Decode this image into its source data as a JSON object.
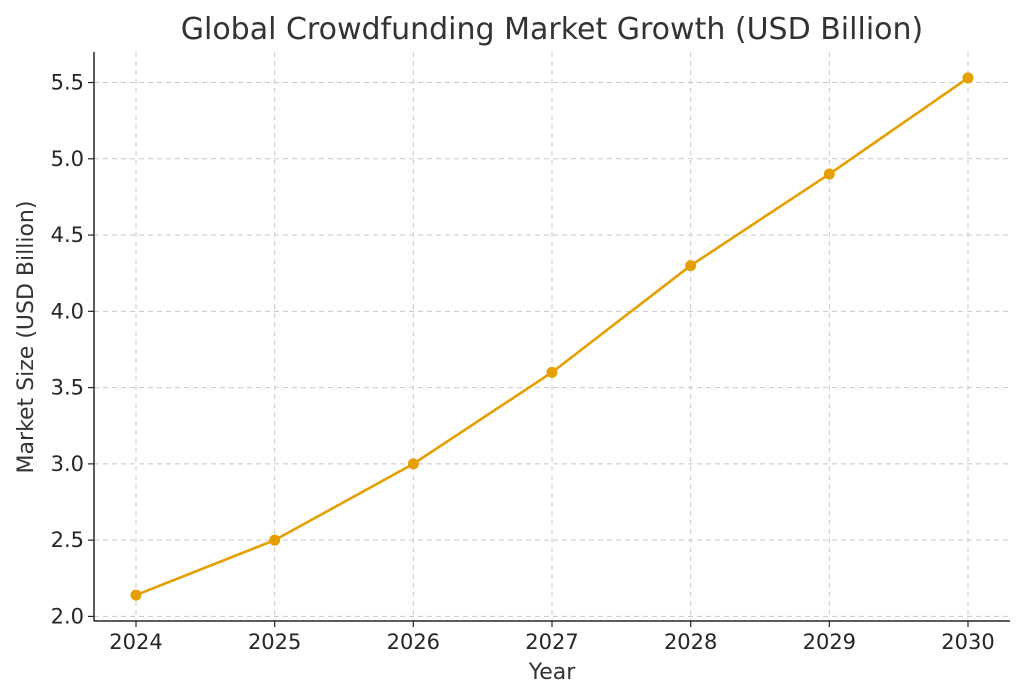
{
  "chart_data": {
    "type": "line",
    "title": "Global Crowdfunding Market Growth (USD Billion)",
    "xlabel": "Year",
    "ylabel": "Market Size (USD Billion)",
    "x": [
      "2024",
      "2025",
      "2026",
      "2027",
      "2028",
      "2029",
      "2030"
    ],
    "series": [
      {
        "values": [
          2.14,
          2.5,
          3.0,
          3.6,
          4.3,
          4.9,
          5.53
        ],
        "color": "#e69f00",
        "marker": "circle"
      }
    ],
    "yticks": [
      "2.0",
      "2.5",
      "3.0",
      "3.5",
      "4.0",
      "4.5",
      "5.0",
      "5.5"
    ],
    "ylim": [
      1.97,
      5.7
    ],
    "grid": true,
    "legend": "none"
  }
}
